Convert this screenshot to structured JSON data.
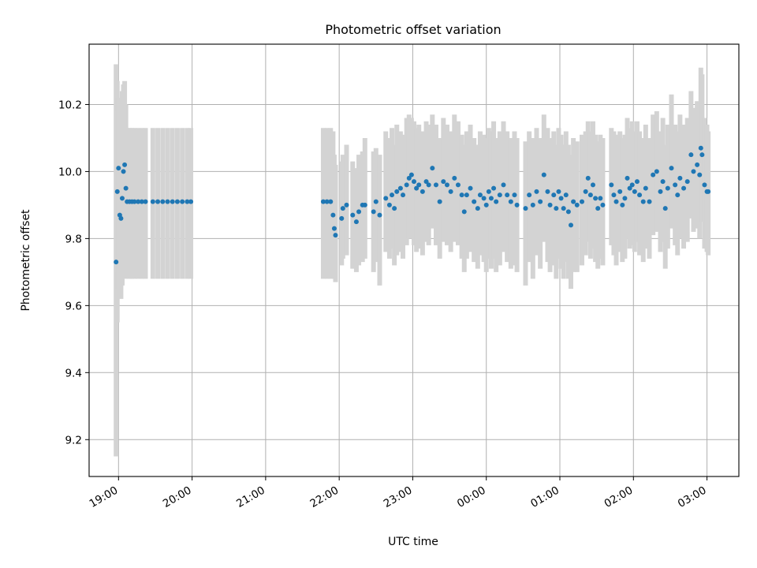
{
  "chart_data": {
    "type": "scatter",
    "title": "Photometric offset variation",
    "xlabel": "UTC time",
    "ylabel": "Photometric offset",
    "grid": true,
    "ylim": [
      9.09,
      10.38
    ],
    "xlim": [
      "18:36",
      "03:26"
    ],
    "x_tick_labels": [
      "19:00",
      "20:00",
      "21:00",
      "22:00",
      "23:00",
      "00:00",
      "01:00",
      "02:00",
      "03:00"
    ],
    "y_tick_labels": [
      "9.2",
      "9.4",
      "9.6",
      "9.8",
      "10.0",
      "10.2"
    ],
    "colors": {
      "points": "#1f77b4",
      "errorbars": "#d3d3d3",
      "grid": "#b0b0b0"
    },
    "points": [
      [
        "18:58",
        9.73,
        9.15,
        10.32
      ],
      [
        "18:59",
        9.94,
        9.55,
        10.27
      ],
      [
        "19:00",
        10.01,
        9.65,
        10.22
      ],
      [
        "19:01",
        9.87,
        9.7,
        10.18
      ],
      [
        "19:02",
        9.86,
        9.62,
        10.2
      ],
      [
        "19:03",
        9.92,
        9.66,
        10.24
      ],
      [
        "19:04",
        10.0,
        9.7,
        10.26
      ],
      [
        "19:05",
        10.02,
        9.75,
        10.27
      ],
      [
        "19:06",
        9.95,
        9.68,
        10.2
      ],
      [
        "19:07",
        9.91,
        9.7,
        10.13
      ],
      [
        "19:09",
        9.91,
        9.68,
        10.13
      ],
      [
        "19:11",
        9.91,
        9.68,
        10.13
      ],
      [
        "19:13",
        9.91,
        9.68,
        10.13
      ],
      [
        "19:16",
        9.91,
        9.68,
        10.13
      ],
      [
        "19:19",
        9.91,
        9.68,
        10.13
      ],
      [
        "19:22",
        9.91,
        9.68,
        10.13
      ],
      [
        "19:28",
        9.91,
        9.68,
        10.13
      ],
      [
        "19:32",
        9.91,
        9.68,
        10.13
      ],
      [
        "19:36",
        9.91,
        9.68,
        10.13
      ],
      [
        "19:40",
        9.91,
        9.68,
        10.13
      ],
      [
        "19:44",
        9.91,
        9.68,
        10.13
      ],
      [
        "19:48",
        9.91,
        9.68,
        10.13
      ],
      [
        "19:52",
        9.91,
        9.68,
        10.13
      ],
      [
        "19:56",
        9.91,
        9.68,
        10.13
      ],
      [
        "19:59",
        9.91,
        9.68,
        10.13
      ],
      [
        "21:47",
        9.91,
        9.68,
        10.13
      ],
      [
        "21:50",
        9.91,
        9.68,
        10.13
      ],
      [
        "21:53",
        9.91,
        9.68,
        10.13
      ],
      [
        "21:55",
        9.87,
        9.7,
        10.12
      ],
      [
        "21:56",
        9.83,
        9.68,
        10.05
      ],
      [
        "21:57",
        9.81,
        9.67,
        10.02
      ],
      [
        "22:02",
        9.86,
        9.72,
        10.03
      ],
      [
        "22:03",
        9.89,
        9.74,
        10.05
      ],
      [
        "22:06",
        9.9,
        9.75,
        10.08
      ],
      [
        "22:11",
        9.87,
        9.71,
        10.03
      ],
      [
        "22:14",
        9.85,
        9.7,
        10.01
      ],
      [
        "22:16",
        9.88,
        9.72,
        10.05
      ],
      [
        "22:19",
        9.9,
        9.73,
        10.06
      ],
      [
        "22:21",
        9.9,
        9.74,
        10.1
      ],
      [
        "22:28",
        9.88,
        9.7,
        10.06
      ],
      [
        "22:30",
        9.91,
        9.73,
        10.07
      ],
      [
        "22:33",
        9.87,
        9.66,
        10.05
      ],
      [
        "22:38",
        9.92,
        9.76,
        10.12
      ],
      [
        "22:41",
        9.9,
        9.74,
        10.1
      ],
      [
        "22:43",
        9.93,
        9.77,
        10.13
      ],
      [
        "22:45",
        9.89,
        9.72,
        10.08
      ],
      [
        "22:47",
        9.94,
        9.75,
        10.14
      ],
      [
        "22:50",
        9.95,
        9.76,
        10.12
      ],
      [
        "22:52",
        9.93,
        9.74,
        10.11
      ],
      [
        "22:55",
        9.96,
        9.78,
        10.16
      ],
      [
        "22:57",
        9.98,
        9.8,
        10.17
      ],
      [
        "22:59",
        9.99,
        9.8,
        10.16
      ],
      [
        "23:01",
        9.97,
        9.78,
        10.15
      ],
      [
        "23:03",
        9.95,
        9.76,
        10.13
      ],
      [
        "23:05",
        9.96,
        9.77,
        10.14
      ],
      [
        "23:08",
        9.94,
        9.75,
        10.12
      ],
      [
        "23:11",
        9.97,
        9.79,
        10.15
      ],
      [
        "23:13",
        9.96,
        9.78,
        10.14
      ],
      [
        "23:16",
        10.01,
        9.83,
        10.17
      ],
      [
        "23:19",
        9.96,
        9.78,
        10.14
      ],
      [
        "23:22",
        9.91,
        9.74,
        10.1
      ],
      [
        "23:25",
        9.97,
        9.79,
        10.16
      ],
      [
        "23:28",
        9.96,
        9.78,
        10.14
      ],
      [
        "23:31",
        9.94,
        9.76,
        10.12
      ],
      [
        "23:34",
        9.98,
        9.79,
        10.17
      ],
      [
        "23:37",
        9.96,
        9.78,
        10.15
      ],
      [
        "23:40",
        9.93,
        9.74,
        10.11
      ],
      [
        "23:42",
        9.88,
        9.7,
        10.08
      ],
      [
        "23:44",
        9.93,
        9.74,
        10.12
      ],
      [
        "23:47",
        9.95,
        9.76,
        10.14
      ],
      [
        "23:50",
        9.91,
        9.73,
        10.1
      ],
      [
        "23:53",
        9.89,
        9.71,
        10.08
      ],
      [
        "23:55",
        9.93,
        9.75,
        10.12
      ],
      [
        "23:58",
        9.92,
        9.73,
        10.11
      ],
      [
        "00:00",
        9.9,
        9.7,
        10.1
      ],
      [
        "00:02",
        9.94,
        9.74,
        10.13
      ],
      [
        "00:04",
        9.92,
        9.71,
        10.12
      ],
      [
        "00:06",
        9.95,
        9.74,
        10.15
      ],
      [
        "00:08",
        9.91,
        9.7,
        10.1
      ],
      [
        "00:11",
        9.93,
        9.72,
        10.12
      ],
      [
        "00:14",
        9.96,
        9.76,
        10.15
      ],
      [
        "00:17",
        9.93,
        9.73,
        10.12
      ],
      [
        "00:20",
        9.91,
        9.71,
        10.1
      ],
      [
        "00:23",
        9.93,
        9.72,
        10.12
      ],
      [
        "00:25",
        9.9,
        9.7,
        10.1
      ],
      [
        "00:32",
        9.89,
        9.66,
        10.09
      ],
      [
        "00:35",
        9.93,
        9.73,
        10.12
      ],
      [
        "00:38",
        9.9,
        9.68,
        10.1
      ],
      [
        "00:41",
        9.94,
        9.75,
        10.13
      ],
      [
        "00:44",
        9.91,
        9.71,
        10.1
      ],
      [
        "00:47",
        9.99,
        9.79,
        10.17
      ],
      [
        "00:50",
        9.94,
        9.73,
        10.13
      ],
      [
        "00:52",
        9.9,
        9.7,
        10.1
      ],
      [
        "00:55",
        9.93,
        9.72,
        10.12
      ],
      [
        "00:57",
        9.89,
        9.68,
        10.08
      ],
      [
        "00:59",
        9.94,
        9.74,
        10.13
      ],
      [
        "01:01",
        9.92,
        9.71,
        10.11
      ],
      [
        "01:03",
        9.89,
        9.68,
        10.08
      ],
      [
        "01:05",
        9.93,
        9.73,
        10.12
      ],
      [
        "01:07",
        9.88,
        9.68,
        10.08
      ],
      [
        "01:09",
        9.84,
        9.65,
        10.05
      ],
      [
        "01:11",
        9.91,
        9.7,
        10.1
      ],
      [
        "01:14",
        9.9,
        9.7,
        10.09
      ],
      [
        "01:18",
        9.91,
        9.72,
        10.11
      ],
      [
        "01:21",
        9.94,
        9.75,
        10.12
      ],
      [
        "01:23",
        9.98,
        9.79,
        10.15
      ],
      [
        "01:25",
        9.93,
        9.74,
        10.12
      ],
      [
        "01:27",
        9.96,
        9.77,
        10.15
      ],
      [
        "01:29",
        9.92,
        9.73,
        10.11
      ],
      [
        "01:31",
        9.89,
        9.71,
        10.09
      ],
      [
        "01:33",
        9.92,
        9.74,
        10.11
      ],
      [
        "01:35",
        9.9,
        9.72,
        10.1
      ],
      [
        "01:42",
        9.96,
        9.78,
        10.13
      ],
      [
        "01:44",
        9.93,
        9.75,
        10.12
      ],
      [
        "01:46",
        9.91,
        9.72,
        10.11
      ],
      [
        "01:49",
        9.94,
        9.76,
        10.12
      ],
      [
        "01:51",
        9.9,
        9.73,
        10.1
      ],
      [
        "01:53",
        9.92,
        9.74,
        10.11
      ],
      [
        "01:55",
        9.98,
        9.8,
        10.16
      ],
      [
        "01:57",
        9.95,
        9.77,
        10.13
      ],
      [
        "01:59",
        9.96,
        9.78,
        10.15
      ],
      [
        "02:01",
        9.94,
        9.76,
        10.12
      ],
      [
        "02:03",
        9.97,
        9.79,
        10.15
      ],
      [
        "02:05",
        9.93,
        9.75,
        10.12
      ],
      [
        "02:08",
        9.91,
        9.73,
        10.1
      ],
      [
        "02:10",
        9.95,
        9.77,
        10.14
      ],
      [
        "02:13",
        9.91,
        9.74,
        10.1
      ],
      [
        "02:16",
        9.99,
        9.81,
        10.17
      ],
      [
        "02:19",
        10.0,
        9.82,
        10.18
      ],
      [
        "02:22",
        9.94,
        9.76,
        10.12
      ],
      [
        "02:24",
        9.97,
        9.79,
        10.16
      ],
      [
        "02:26",
        9.89,
        9.71,
        10.08
      ],
      [
        "02:28",
        9.95,
        9.77,
        10.14
      ],
      [
        "02:31",
        10.01,
        9.83,
        10.23
      ],
      [
        "02:34",
        9.96,
        9.78,
        10.14
      ],
      [
        "02:36",
        9.93,
        9.75,
        10.12
      ],
      [
        "02:38",
        9.98,
        9.8,
        10.17
      ],
      [
        "02:41",
        9.95,
        9.77,
        10.14
      ],
      [
        "02:44",
        9.97,
        9.79,
        10.16
      ],
      [
        "02:47",
        10.05,
        9.86,
        10.24
      ],
      [
        "02:49",
        10.0,
        9.82,
        10.19
      ],
      [
        "02:52",
        10.02,
        9.83,
        10.21
      ],
      [
        "02:54",
        9.99,
        9.8,
        10.18
      ],
      [
        "02:55",
        10.07,
        9.87,
        10.31
      ],
      [
        "02:56",
        10.05,
        9.85,
        10.29
      ],
      [
        "02:58",
        9.96,
        9.77,
        10.16
      ],
      [
        "03:00",
        9.94,
        9.76,
        10.14
      ],
      [
        "03:01",
        9.94,
        9.75,
        10.12
      ]
    ]
  }
}
